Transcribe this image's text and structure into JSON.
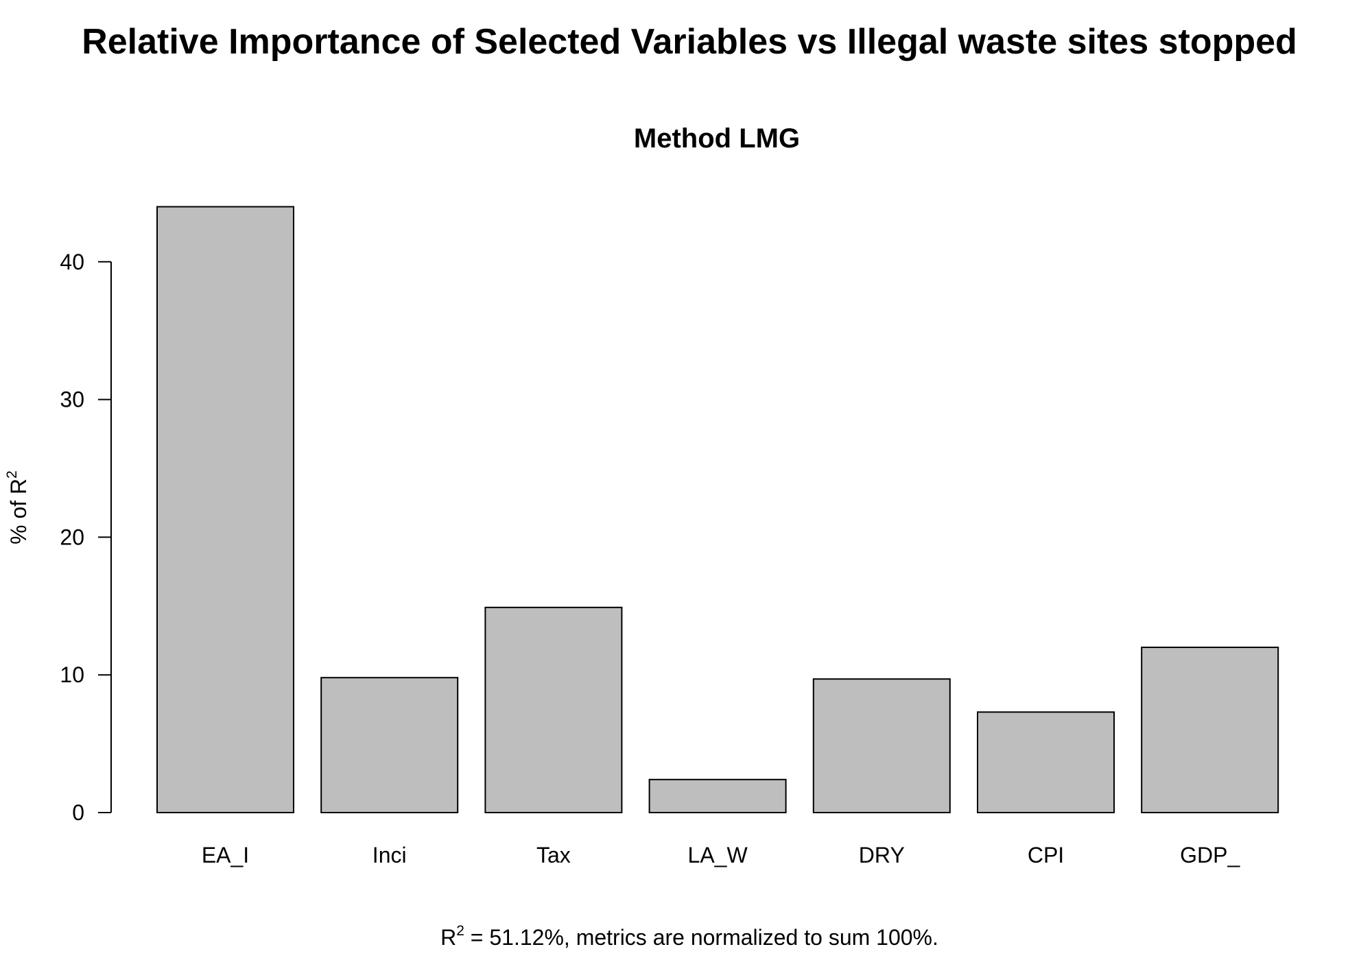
{
  "chart_data": {
    "type": "bar",
    "title": "Relative Importance of Selected Variables vs Illegal waste sites stopped",
    "subtitle": "Method LMG",
    "ylabel": {
      "prefix": "% of R",
      "superscript": "2"
    },
    "categories": [
      "EA_I",
      "Inci",
      "Tax",
      "LA_W",
      "DRY",
      "CPI",
      "GDP_"
    ],
    "values": [
      44.0,
      9.8,
      14.9,
      2.4,
      9.7,
      7.3,
      12.0
    ],
    "yticks": [
      0,
      10,
      20,
      30,
      40
    ],
    "ylim": [
      0,
      44
    ],
    "bar_fill": "#bebebe",
    "bar_stroke": "#000000",
    "footnote": {
      "prefix": "R",
      "superscript": "2",
      "text": " = 51.12%, metrics are normalized to sum 100%."
    }
  }
}
